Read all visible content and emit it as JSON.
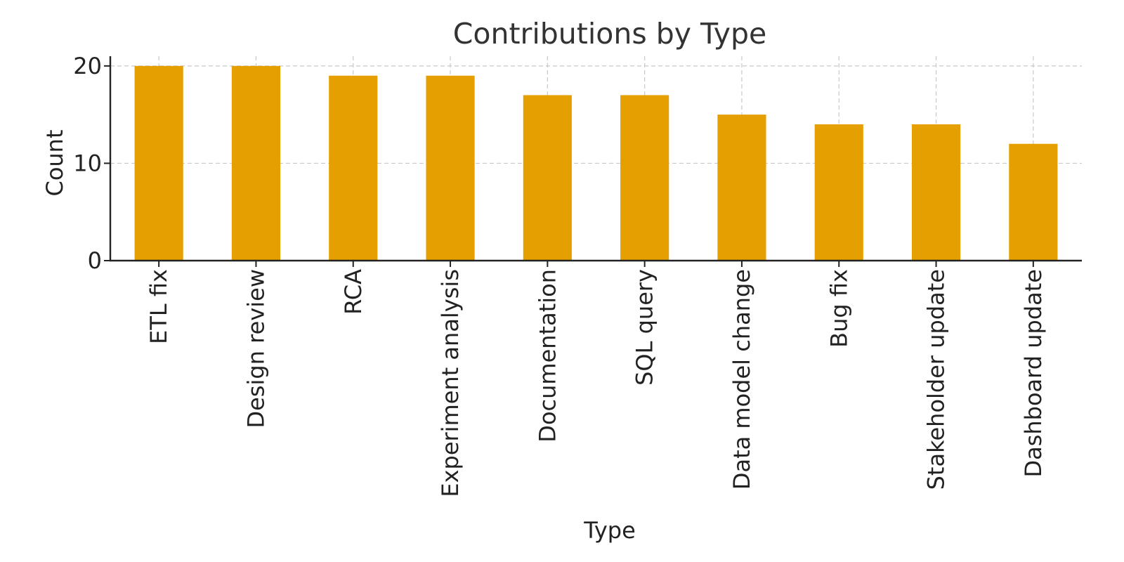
{
  "chart_data": {
    "type": "bar",
    "title": "Contributions by Type",
    "xlabel": "Type",
    "ylabel": "Count",
    "categories": [
      "ETL fix",
      "Design review",
      "RCA",
      "Experiment analysis",
      "Documentation",
      "SQL query",
      "Data model change",
      "Bug fix",
      "Stakeholder update",
      "Dashboard update"
    ],
    "values": [
      20,
      20,
      19,
      19,
      17,
      17,
      15,
      14,
      14,
      12
    ],
    "ylim": [
      0,
      21
    ],
    "yticks": [
      0,
      10,
      20
    ],
    "grid": true,
    "bar_color": "#E69F00"
  }
}
